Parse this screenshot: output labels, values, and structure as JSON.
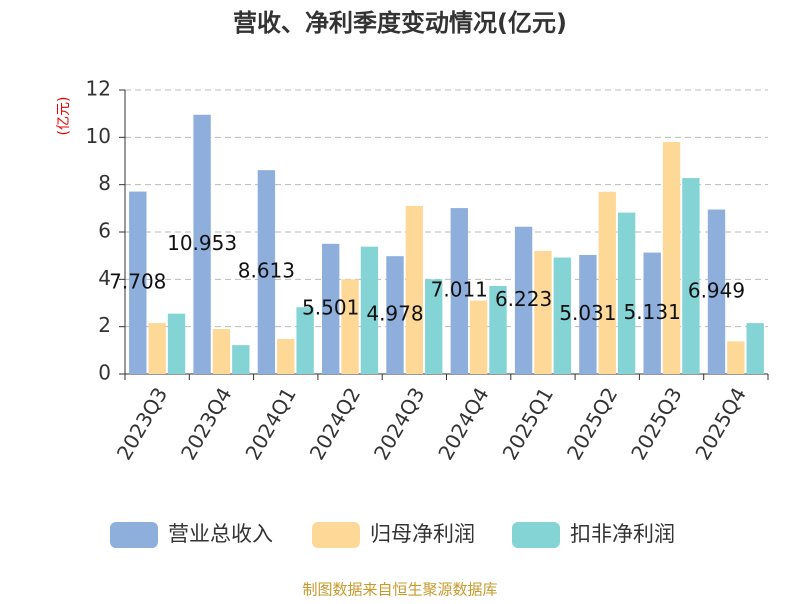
{
  "chart_data": {
    "type": "bar",
    "title": "营收、净利季度变动情况(亿元)",
    "y_label": "(亿元)",
    "source": "制图数据来自恒生聚源数据库",
    "categories": [
      "2023Q3",
      "2023Q4",
      "2024Q1",
      "2024Q2",
      "2024Q3",
      "2024Q4",
      "2025Q1",
      "2025Q2",
      "2025Q3",
      "2025Q4"
    ],
    "series": [
      {
        "name": "营业总收入",
        "color": "#8eaedc",
        "values": [
          7.708,
          10.953,
          8.613,
          5.501,
          4.978,
          7.011,
          6.223,
          5.031,
          5.131,
          6.949
        ]
      },
      {
        "name": "归母净利润",
        "color": "#fdd896",
        "values": [
          2.15,
          1.9,
          1.48,
          4.0,
          7.1,
          3.1,
          5.2,
          7.7,
          9.8,
          1.38
        ]
      },
      {
        "name": "扣非净利润",
        "color": "#84d4d6",
        "values": [
          2.55,
          1.22,
          2.82,
          5.38,
          4.0,
          3.72,
          4.92,
          6.82,
          8.28,
          2.15
        ]
      }
    ],
    "ylim": [
      0,
      12
    ],
    "yticks": [
      0,
      2,
      4,
      6,
      8,
      10,
      12
    ],
    "grid": true
  }
}
